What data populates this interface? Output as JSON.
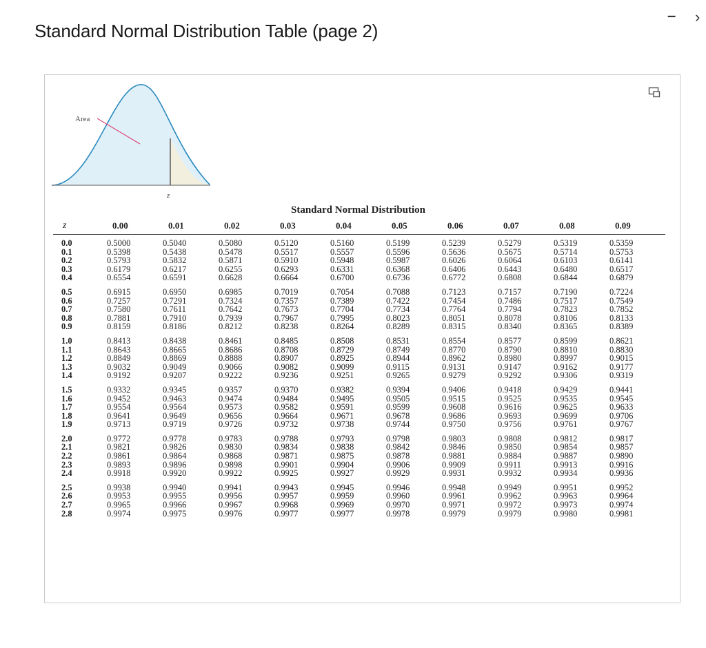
{
  "page": {
    "title": "Standard Normal Distribution Table (page 2)",
    "minimize_glyph": "–",
    "close_glyph": "›"
  },
  "figure": {
    "area_label": "Area",
    "z_label": "z"
  },
  "table": {
    "caption": "Standard Normal Distribution",
    "z_header": "z",
    "columns": [
      "0.00",
      "0.01",
      "0.02",
      "0.03",
      "0.04",
      "0.05",
      "0.06",
      "0.07",
      "0.08",
      "0.09"
    ],
    "rows": [
      {
        "z": "0.0",
        "values": [
          "0.5000",
          "0.5040",
          "0.5080",
          "0.5120",
          "0.5160",
          "0.5199",
          "0.5239",
          "0.5279",
          "0.5319",
          "0.5359"
        ]
      },
      {
        "z": "0.1",
        "values": [
          "0.5398",
          "0.5438",
          "0.5478",
          "0.5517",
          "0.5557",
          "0.5596",
          "0.5636",
          "0.5675",
          "0.5714",
          "0.5753"
        ]
      },
      {
        "z": "0.2",
        "values": [
          "0.5793",
          "0.5832",
          "0.5871",
          "0.5910",
          "0.5948",
          "0.5987",
          "0.6026",
          "0.6064",
          "0.6103",
          "0.6141"
        ]
      },
      {
        "z": "0.3",
        "values": [
          "0.6179",
          "0.6217",
          "0.6255",
          "0.6293",
          "0.6331",
          "0.6368",
          "0.6406",
          "0.6443",
          "0.6480",
          "0.6517"
        ]
      },
      {
        "z": "0.4",
        "values": [
          "0.6554",
          "0.6591",
          "0.6628",
          "0.6664",
          "0.6700",
          "0.6736",
          "0.6772",
          "0.6808",
          "0.6844",
          "0.6879"
        ]
      },
      {
        "z": "0.5",
        "values": [
          "0.6915",
          "0.6950",
          "0.6985",
          "0.7019",
          "0.7054",
          "0.7088",
          "0.7123",
          "0.7157",
          "0.7190",
          "0.7224"
        ]
      },
      {
        "z": "0.6",
        "values": [
          "0.7257",
          "0.7291",
          "0.7324",
          "0.7357",
          "0.7389",
          "0.7422",
          "0.7454",
          "0.7486",
          "0.7517",
          "0.7549"
        ]
      },
      {
        "z": "0.7",
        "values": [
          "0.7580",
          "0.7611",
          "0.7642",
          "0.7673",
          "0.7704",
          "0.7734",
          "0.7764",
          "0.7794",
          "0.7823",
          "0.7852"
        ]
      },
      {
        "z": "0.8",
        "values": [
          "0.7881",
          "0.7910",
          "0.7939",
          "0.7967",
          "0.7995",
          "0.8023",
          "0.8051",
          "0.8078",
          "0.8106",
          "0.8133"
        ]
      },
      {
        "z": "0.9",
        "values": [
          "0.8159",
          "0.8186",
          "0.8212",
          "0.8238",
          "0.8264",
          "0.8289",
          "0.8315",
          "0.8340",
          "0.8365",
          "0.8389"
        ]
      },
      {
        "z": "1.0",
        "values": [
          "0.8413",
          "0.8438",
          "0.8461",
          "0.8485",
          "0.8508",
          "0.8531",
          "0.8554",
          "0.8577",
          "0.8599",
          "0.8621"
        ]
      },
      {
        "z": "1.1",
        "values": [
          "0.8643",
          "0.8665",
          "0.8686",
          "0.8708",
          "0.8729",
          "0.8749",
          "0.8770",
          "0.8790",
          "0.8810",
          "0.8830"
        ]
      },
      {
        "z": "1.2",
        "values": [
          "0.8849",
          "0.8869",
          "0.8888",
          "0.8907",
          "0.8925",
          "0.8944",
          "0.8962",
          "0.8980",
          "0.8997",
          "0.9015"
        ]
      },
      {
        "z": "1.3",
        "values": [
          "0.9032",
          "0.9049",
          "0.9066",
          "0.9082",
          "0.9099",
          "0.9115",
          "0.9131",
          "0.9147",
          "0.9162",
          "0.9177"
        ]
      },
      {
        "z": "1.4",
        "values": [
          "0.9192",
          "0.9207",
          "0.9222",
          "0.9236",
          "0.9251",
          "0.9265",
          "0.9279",
          "0.9292",
          "0.9306",
          "0.9319"
        ]
      },
      {
        "z": "1.5",
        "values": [
          "0.9332",
          "0.9345",
          "0.9357",
          "0.9370",
          "0.9382",
          "0.9394",
          "0.9406",
          "0.9418",
          "0.9429",
          "0.9441"
        ]
      },
      {
        "z": "1.6",
        "values": [
          "0.9452",
          "0.9463",
          "0.9474",
          "0.9484",
          "0.9495",
          "0.9505",
          "0.9515",
          "0.9525",
          "0.9535",
          "0.9545"
        ]
      },
      {
        "z": "1.7",
        "values": [
          "0.9554",
          "0.9564",
          "0.9573",
          "0.9582",
          "0.9591",
          "0.9599",
          "0.9608",
          "0.9616",
          "0.9625",
          "0.9633"
        ]
      },
      {
        "z": "1.8",
        "values": [
          "0.9641",
          "0.9649",
          "0.9656",
          "0.9664",
          "0.9671",
          "0.9678",
          "0.9686",
          "0.9693",
          "0.9699",
          "0.9706"
        ]
      },
      {
        "z": "1.9",
        "values": [
          "0.9713",
          "0.9719",
          "0.9726",
          "0.9732",
          "0.9738",
          "0.9744",
          "0.9750",
          "0.9756",
          "0.9761",
          "0.9767"
        ]
      },
      {
        "z": "2.0",
        "values": [
          "0.9772",
          "0.9778",
          "0.9783",
          "0.9788",
          "0.9793",
          "0.9798",
          "0.9803",
          "0.9808",
          "0.9812",
          "0.9817"
        ]
      },
      {
        "z": "2.1",
        "values": [
          "0.9821",
          "0.9826",
          "0.9830",
          "0.9834",
          "0.9838",
          "0.9842",
          "0.9846",
          "0.9850",
          "0.9854",
          "0.9857"
        ]
      },
      {
        "z": "2.2",
        "values": [
          "0.9861",
          "0.9864",
          "0.9868",
          "0.9871",
          "0.9875",
          "0.9878",
          "0.9881",
          "0.9884",
          "0.9887",
          "0.9890"
        ]
      },
      {
        "z": "2.3",
        "values": [
          "0.9893",
          "0.9896",
          "0.9898",
          "0.9901",
          "0.9904",
          "0.9906",
          "0.9909",
          "0.9911",
          "0.9913",
          "0.9916"
        ]
      },
      {
        "z": "2.4",
        "values": [
          "0.9918",
          "0.9920",
          "0.9922",
          "0.9925",
          "0.9927",
          "0.9929",
          "0.9931",
          "0.9932",
          "0.9934",
          "0.9936"
        ]
      },
      {
        "z": "2.5",
        "values": [
          "0.9938",
          "0.9940",
          "0.9941",
          "0.9943",
          "0.9945",
          "0.9946",
          "0.9948",
          "0.9949",
          "0.9951",
          "0.9952"
        ]
      },
      {
        "z": "2.6",
        "values": [
          "0.9953",
          "0.9955",
          "0.9956",
          "0.9957",
          "0.9959",
          "0.9960",
          "0.9961",
          "0.9962",
          "0.9963",
          "0.9964"
        ]
      },
      {
        "z": "2.7",
        "values": [
          "0.9965",
          "0.9966",
          "0.9967",
          "0.9968",
          "0.9969",
          "0.9970",
          "0.9971",
          "0.9972",
          "0.9973",
          "0.9974"
        ]
      },
      {
        "z": "2.8",
        "values": [
          "0.9974",
          "0.9975",
          "0.9976",
          "0.9977",
          "0.9977",
          "0.9978",
          "0.9979",
          "0.9979",
          "0.9980",
          "0.9981"
        ]
      }
    ]
  }
}
